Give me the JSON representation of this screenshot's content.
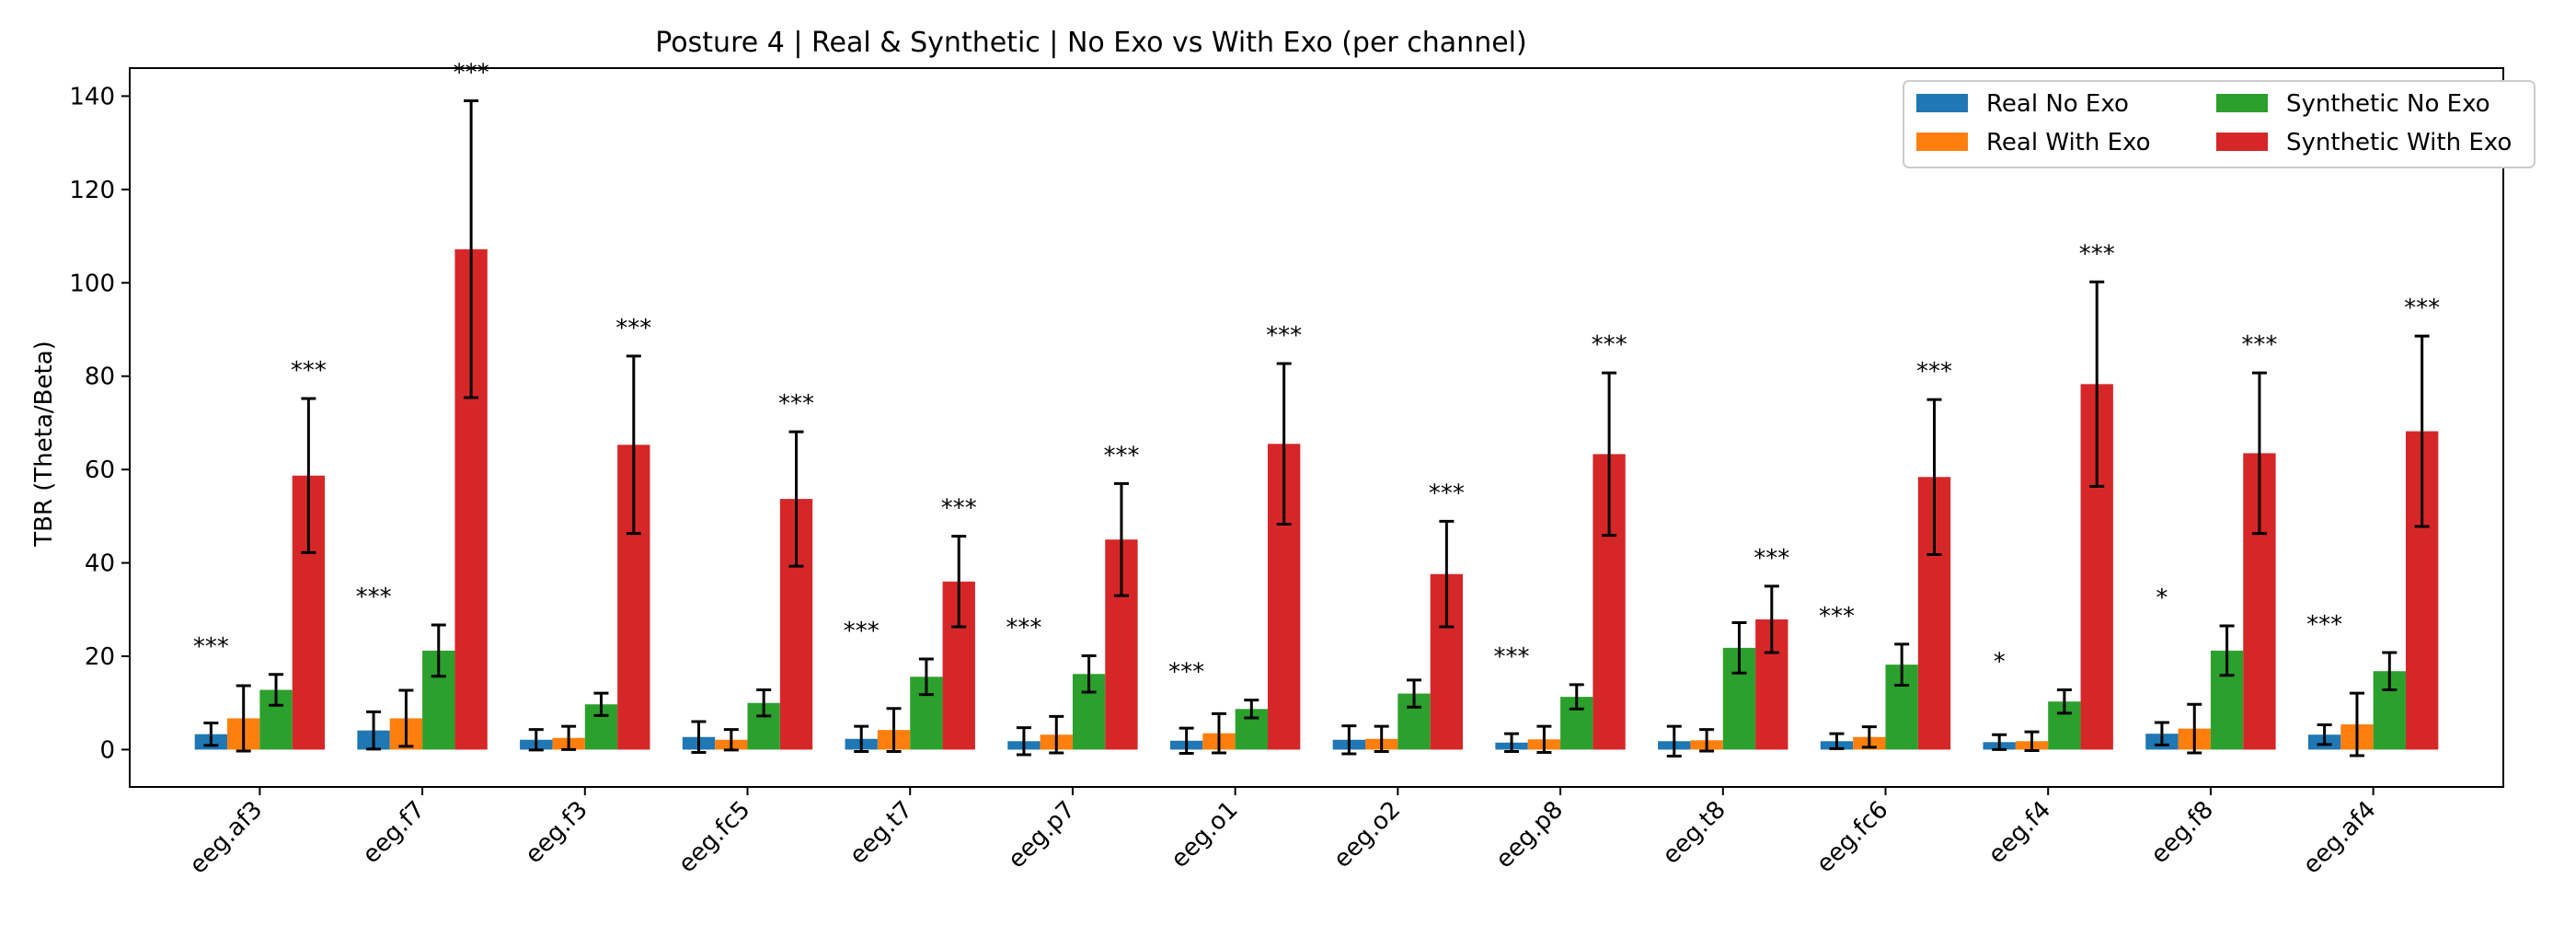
{
  "chart_data": {
    "type": "bar",
    "title": "Posture 4 | Real & Synthetic | No Exo vs With Exo (per channel)",
    "xlabel": "",
    "ylabel": "TBR (Theta/Beta)",
    "ylim": [
      -8,
      146
    ],
    "yticks": [
      0,
      20,
      40,
      60,
      80,
      100,
      120,
      140
    ],
    "grid": false,
    "legend_position": "top-right",
    "categories": [
      "eeg.af3",
      "eeg.f7",
      "eeg.f3",
      "eeg.fc5",
      "eeg.t7",
      "eeg.p7",
      "eeg.o1",
      "eeg.o2",
      "eeg.p8",
      "eeg.t8",
      "eeg.fc6",
      "eeg.f4",
      "eeg.f8",
      "eeg.af4"
    ],
    "series": [
      {
        "name": "Real No Exo",
        "color": "#1f77b4",
        "values": [
          3.3,
          4.1,
          2.1,
          2.7,
          2.3,
          1.8,
          1.9,
          2.1,
          1.5,
          1.8,
          1.8,
          1.6,
          3.4,
          3.2
        ],
        "errors": [
          2.4,
          4.0,
          2.2,
          3.3,
          2.7,
          2.9,
          2.7,
          3.0,
          1.9,
          3.2,
          1.6,
          1.6,
          2.4,
          2.1
        ]
      },
      {
        "name": "Real With Exo",
        "color": "#ff7f0e",
        "values": [
          6.7,
          6.7,
          2.5,
          2.1,
          4.2,
          3.2,
          3.5,
          2.3,
          2.2,
          2.0,
          2.7,
          1.8,
          4.5,
          5.4
        ],
        "errors": [
          7.0,
          6.0,
          2.5,
          2.2,
          4.6,
          3.9,
          4.2,
          2.7,
          2.8,
          2.3,
          2.2,
          2.0,
          5.2,
          6.7
        ]
      },
      {
        "name": "Synthetic No Exo",
        "color": "#2ca02c",
        "values": [
          12.8,
          21.2,
          9.7,
          10.0,
          15.6,
          16.2,
          8.7,
          12.0,
          11.3,
          21.8,
          18.2,
          10.3,
          21.2,
          16.8
        ],
        "errors": [
          3.3,
          5.5,
          2.4,
          2.8,
          3.8,
          3.9,
          1.9,
          2.9,
          2.6,
          5.4,
          4.4,
          2.5,
          5.3,
          4.0
        ]
      },
      {
        "name": "Synthetic With Exo",
        "color": "#d62728",
        "values": [
          58.7,
          107.2,
          65.3,
          53.7,
          36.0,
          45.0,
          65.5,
          37.6,
          63.3,
          27.9,
          58.4,
          78.3,
          63.5,
          68.2
        ],
        "errors": [
          16.5,
          31.8,
          19.0,
          14.4,
          9.7,
          12.0,
          17.2,
          11.3,
          17.4,
          7.1,
          16.6,
          21.9,
          17.2,
          20.4
        ]
      }
    ],
    "annotations": [
      {
        "category": "eeg.af3",
        "text": "***",
        "over": "Real No Exo"
      },
      {
        "category": "eeg.af3",
        "text": "***",
        "over": "Synthetic With Exo"
      },
      {
        "category": "eeg.f7",
        "text": "***",
        "over": "Real No Exo"
      },
      {
        "category": "eeg.f7",
        "text": "***",
        "over": "Synthetic With Exo"
      },
      {
        "category": "eeg.f3",
        "text": "***",
        "over": "Synthetic With Exo"
      },
      {
        "category": "eeg.fc5",
        "text": "***",
        "over": "Synthetic With Exo"
      },
      {
        "category": "eeg.t7",
        "text": "***",
        "over": "Real No Exo"
      },
      {
        "category": "eeg.t7",
        "text": "***",
        "over": "Synthetic With Exo"
      },
      {
        "category": "eeg.p7",
        "text": "***",
        "over": "Real No Exo"
      },
      {
        "category": "eeg.p7",
        "text": "***",
        "over": "Synthetic With Exo"
      },
      {
        "category": "eeg.o1",
        "text": "***",
        "over": "Real No Exo"
      },
      {
        "category": "eeg.o1",
        "text": "***",
        "over": "Synthetic With Exo"
      },
      {
        "category": "eeg.o2",
        "text": "***",
        "over": "Synthetic With Exo"
      },
      {
        "category": "eeg.p8",
        "text": "***",
        "over": "Real No Exo"
      },
      {
        "category": "eeg.p8",
        "text": "***",
        "over": "Synthetic With Exo"
      },
      {
        "category": "eeg.t8",
        "text": "***",
        "over": "Synthetic With Exo"
      },
      {
        "category": "eeg.fc6",
        "text": "***",
        "over": "Real No Exo"
      },
      {
        "category": "eeg.fc6",
        "text": "***",
        "over": "Synthetic With Exo"
      },
      {
        "category": "eeg.f4",
        "text": "*",
        "over": "Real No Exo"
      },
      {
        "category": "eeg.f4",
        "text": "***",
        "over": "Synthetic With Exo"
      },
      {
        "category": "eeg.f8",
        "text": "*",
        "over": "Real No Exo"
      },
      {
        "category": "eeg.f8",
        "text": "***",
        "over": "Synthetic With Exo"
      },
      {
        "category": "eeg.af4",
        "text": "***",
        "over": "Real No Exo"
      },
      {
        "category": "eeg.af4",
        "text": "***",
        "over": "Synthetic With Exo"
      }
    ]
  }
}
